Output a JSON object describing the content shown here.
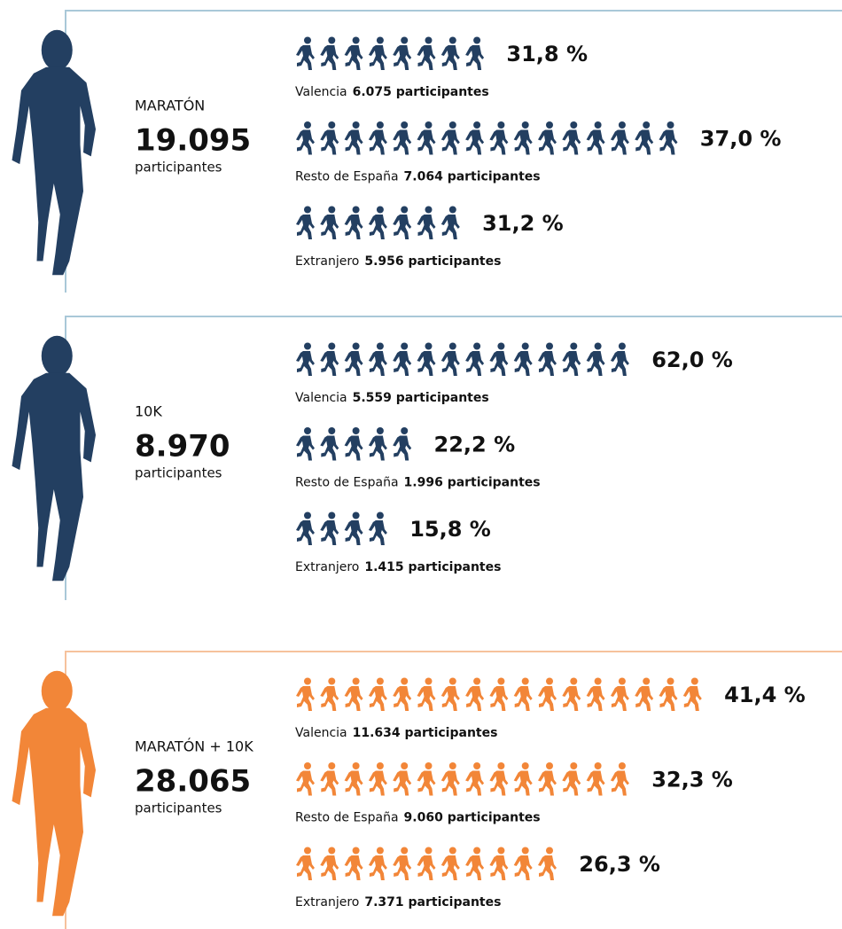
{
  "sections": [
    {
      "event": "MARATÓN",
      "total": "19.095",
      "unit": "participantes",
      "color": "#233f61",
      "border": "#a9c8d8",
      "rows": [
        {
          "region": "Valencia",
          "count": "6.075 participantes",
          "percent": "31,8 %",
          "icons": 8
        },
        {
          "region": "Resto de España",
          "count": "7.064 participantes",
          "percent": "37,0 %",
          "icons": 16
        },
        {
          "region": "Extranjero",
          "count": "5.956 participantes",
          "percent": "31,2 %",
          "icons": 7
        }
      ]
    },
    {
      "event": "10K",
      "total": "8.970",
      "unit": "participantes",
      "color": "#233f61",
      "border": "#a9c8d8",
      "rows": [
        {
          "region": "Valencia",
          "count": "5.559 participantes",
          "percent": "62,0 %",
          "icons": 14
        },
        {
          "region": "Resto de España",
          "count": "1.996 participantes",
          "percent": "22,2 %",
          "icons": 5
        },
        {
          "region": "Extranjero",
          "count": "1.415 participantes",
          "percent": "15,8 %",
          "icons": 4
        }
      ]
    },
    {
      "event": "MARATÓN + 10K",
      "total": "28.065",
      "unit": "participantes",
      "color": "#f28638",
      "border": "#f6c29c",
      "rows": [
        {
          "region": "Valencia",
          "count": "11.634 participantes",
          "percent": "41,4 %",
          "icons": 17
        },
        {
          "region": "Resto de España",
          "count": "9.060 participantes",
          "percent": "32,3 %",
          "icons": 14
        },
        {
          "region": "Extranjero",
          "count": "7.371 participantes",
          "percent": "26,3 %",
          "icons": 11
        }
      ]
    }
  ]
}
